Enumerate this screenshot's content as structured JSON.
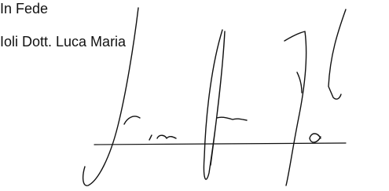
{
  "closing": "In Fede",
  "signatory": "Ioli Dott. Luca Maria"
}
